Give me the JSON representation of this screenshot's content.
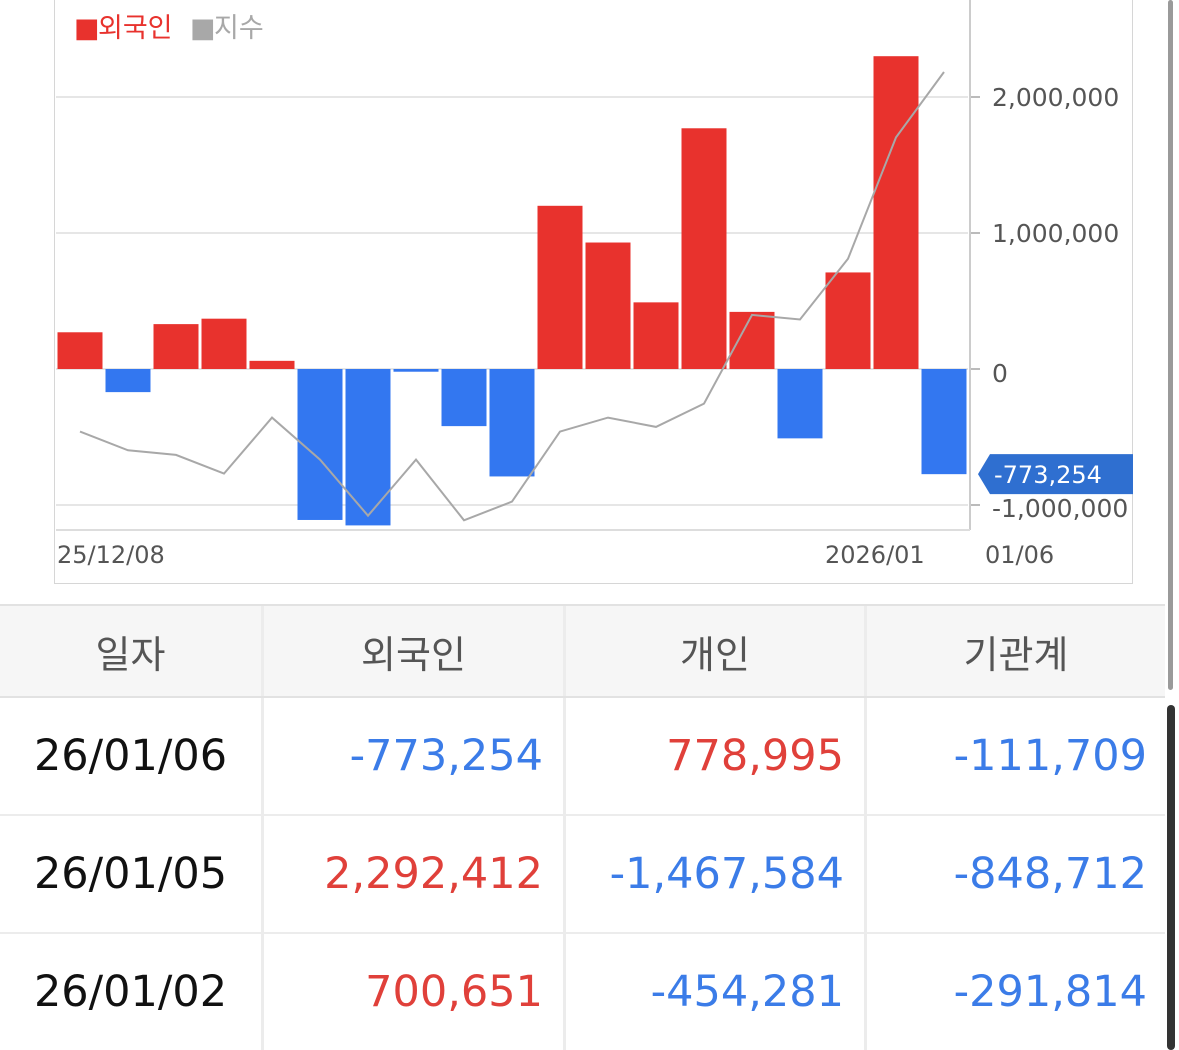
{
  "legend": [
    {
      "label": "외국인",
      "color": "#e8322d",
      "marker": "■"
    },
    {
      "label": "지수",
      "color": "#a8a8a8",
      "marker": "■"
    }
  ],
  "chart_data": {
    "type": "bar",
    "series": [
      {
        "name": "외국인",
        "color_positive": "#e8322d",
        "color_negative": "#3377f0",
        "values": [
          270000,
          -170000,
          330000,
          370000,
          60000,
          -1110000,
          -1150000,
          -20000,
          -420000,
          -790000,
          1200000,
          930000,
          490000,
          1770000,
          420000,
          -510000,
          710000,
          2300000,
          -773254
        ]
      },
      {
        "name": "지수",
        "type": "line",
        "color": "#a8a8a8",
        "relative_levels": [
          0.2,
          0.16,
          0.15,
          0.11,
          0.23,
          0.14,
          0.02,
          0.14,
          0.01,
          0.05,
          0.2,
          0.23,
          0.21,
          0.26,
          0.45,
          0.44,
          0.57,
          0.83,
          0.97
        ]
      }
    ],
    "y_tick_labels": [
      "2,000,000",
      "1,000,000",
      "0",
      "-1,000,000"
    ],
    "y_tick_values": [
      2000000,
      1000000,
      0,
      -1000000
    ],
    "ylim": [
      -1200000,
      2750000
    ],
    "x_labels": [
      "25/12/08",
      "2026/01",
      "01/06"
    ],
    "grid": true,
    "legend_position": "top-left",
    "last_value_label": "-773,254"
  },
  "table": {
    "headers": [
      "일자",
      "외국인",
      "개인",
      "기관계"
    ],
    "rows": [
      {
        "date": "26/01/06",
        "foreign": "-773,254",
        "individual": "778,995",
        "institution": "-111,709"
      },
      {
        "date": "26/01/05",
        "foreign": "2,292,412",
        "individual": "-1,467,584",
        "institution": "-848,712"
      },
      {
        "date": "26/01/02",
        "foreign": "700,651",
        "individual": "-454,281",
        "institution": "-291,814"
      }
    ]
  }
}
